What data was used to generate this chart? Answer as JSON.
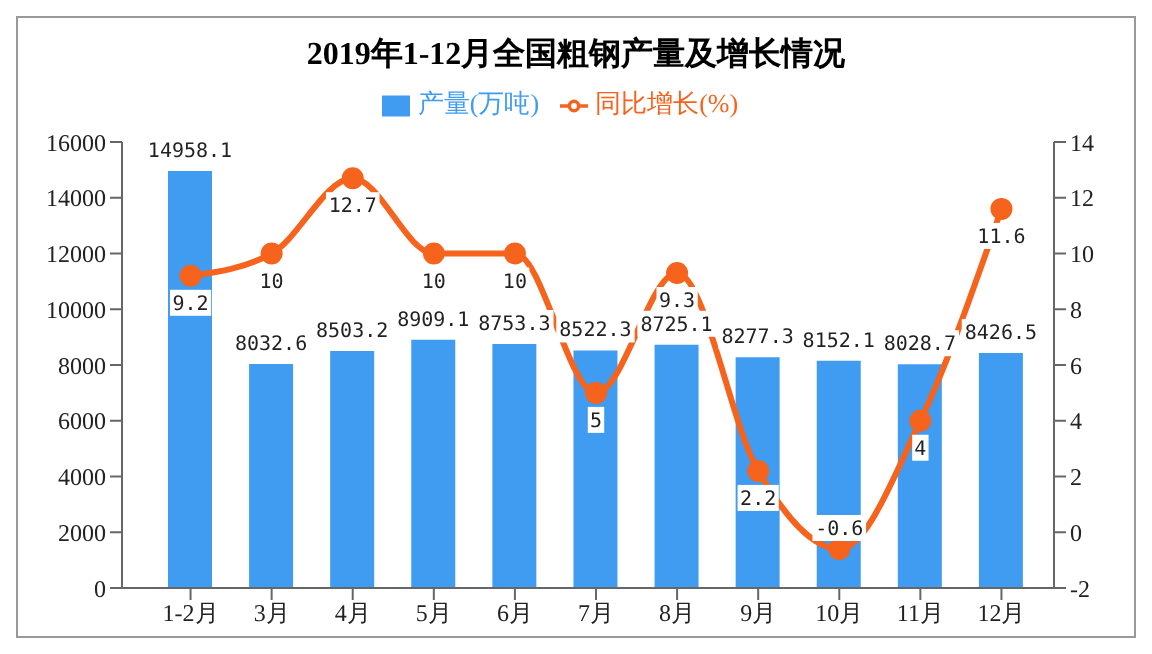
{
  "chart_data": {
    "type": "bar",
    "title": "2019年1-12月全国粗钢产量及增长情况",
    "categories": [
      "1-2月",
      "3月",
      "4月",
      "5月",
      "6月",
      "7月",
      "8月",
      "9月",
      "10月",
      "11月",
      "12月"
    ],
    "series": [
      {
        "name": "产量(万吨)",
        "color": "#3f9cf0",
        "values": [
          14958.1,
          8032.6,
          8503.2,
          8909.1,
          8753.3,
          8522.3,
          8725.1,
          8277.3,
          8152.1,
          8028.7,
          8426.5
        ]
      },
      {
        "name": "同比增长(%)",
        "type": "line",
        "axis": "y2",
        "color": "#f5631d",
        "marker": "circle",
        "values": [
          9.2,
          10,
          12.7,
          10,
          10,
          5,
          9.3,
          2.2,
          -0.6,
          4,
          11.6
        ]
      }
    ],
    "ylim": [
      0,
      16000
    ],
    "yticks": [
      0,
      2000,
      4000,
      6000,
      8000,
      10000,
      12000,
      14000,
      16000
    ],
    "y2lim": [
      -2,
      14
    ],
    "y2ticks": [
      -2,
      0,
      2,
      4,
      6,
      8,
      10,
      12,
      14
    ],
    "data_labels": true,
    "legend": "top",
    "grid": false
  }
}
